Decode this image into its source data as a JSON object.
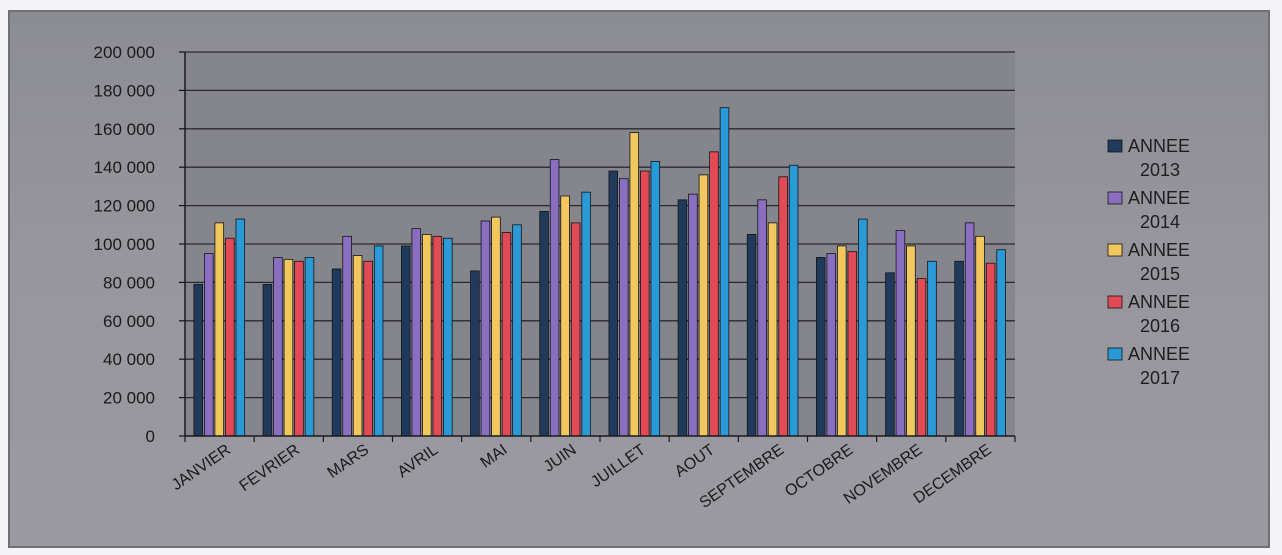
{
  "chart_data": {
    "type": "bar",
    "title": "",
    "xlabel": "",
    "ylabel": "",
    "ylim": [
      0,
      200000
    ],
    "y_ticks": [
      0,
      20000,
      40000,
      60000,
      80000,
      100000,
      120000,
      140000,
      160000,
      180000,
      200000
    ],
    "y_tick_labels": [
      "0",
      "20 000",
      "40 000",
      "60 000",
      "80 000",
      "100 000",
      "120 000",
      "140 000",
      "160 000",
      "180 000",
      "200 000"
    ],
    "grid": true,
    "legend_position": "right",
    "categories": [
      "JANVIER",
      "FEVRIER",
      "MARS",
      "AVRIL",
      "MAI",
      "JUIN",
      "JUILLET",
      "AOUT",
      "SEPTEMBRE",
      "OCTOBRE",
      "NOVEMBRE",
      "DECEMBRE"
    ],
    "series": [
      {
        "name_line1": "ANNEE",
        "name_line2": "2013",
        "color": "#1f3a5a",
        "values": [
          79000,
          79000,
          87000,
          99000,
          86000,
          117000,
          138000,
          123000,
          105000,
          93000,
          85000,
          91000
        ]
      },
      {
        "name_line1": "ANNEE",
        "name_line2": "2014",
        "color": "#8a6fc0",
        "values": [
          95000,
          93000,
          104000,
          108000,
          112000,
          144000,
          134000,
          126000,
          123000,
          95000,
          107000,
          111000
        ]
      },
      {
        "name_line1": "ANNEE",
        "name_line2": "2015",
        "color": "#f2c85e",
        "values": [
          111000,
          92000,
          94000,
          105000,
          114000,
          125000,
          158000,
          136000,
          111000,
          99000,
          99000,
          104000
        ]
      },
      {
        "name_line1": "ANNEE",
        "name_line2": "2016",
        "color": "#e24a55",
        "values": [
          103000,
          91000,
          91000,
          104000,
          106000,
          111000,
          138000,
          148000,
          135000,
          96000,
          82000,
          90000
        ]
      },
      {
        "name_line1": "ANNEE",
        "name_line2": "2017",
        "color": "#2a9ad6",
        "values": [
          113000,
          93000,
          99000,
          103000,
          110000,
          127000,
          143000,
          171000,
          141000,
          113000,
          91000,
          97000
        ]
      }
    ]
  }
}
